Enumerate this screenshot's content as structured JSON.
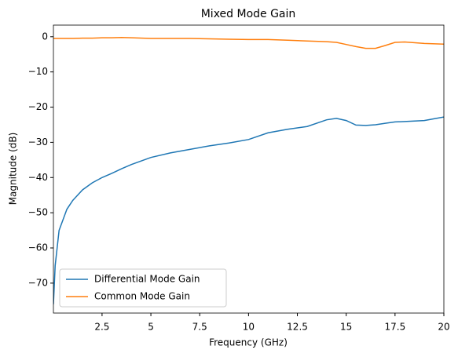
{
  "chart_data": {
    "type": "line",
    "title": "Mixed Mode Gain",
    "x_label": "Frequency (GHz)",
    "y_label": "Magnitude (dB)",
    "x": [
      0.01,
      0.1,
      0.2,
      0.3,
      0.5,
      0.7,
      1,
      1.5,
      2,
      2.5,
      3,
      3.5,
      4,
      5,
      6,
      7,
      8,
      9,
      10,
      11,
      12,
      13,
      14,
      14.5,
      15,
      15.5,
      16,
      16.5,
      17,
      17.5,
      18,
      19,
      20
    ],
    "series": [
      {
        "name": "Differential Mode Gain",
        "color": "#1f77b4",
        "values": [
          -76,
          -65,
          -60,
          -55,
          -52,
          -49,
          -46.5,
          -43.5,
          -41.5,
          -40,
          -38.8,
          -37.5,
          -36.3,
          -34.3,
          -33,
          -32,
          -31,
          -30.2,
          -29.2,
          -27.3,
          -26.3,
          -25.5,
          -23.6,
          -23.2,
          -23.8,
          -25.1,
          -25.2,
          -25,
          -24.6,
          -24.2,
          -24.1,
          -23.8,
          -22.8
        ]
      },
      {
        "name": "Common Mode Gain",
        "color": "#ff7f0e",
        "values": [
          -0.5,
          -0.5,
          -0.5,
          -0.5,
          -0.5,
          -0.5,
          -0.5,
          -0.4,
          -0.4,
          -0.3,
          -0.3,
          -0.2,
          -0.3,
          -0.5,
          -0.5,
          -0.5,
          -0.6,
          -0.7,
          -0.8,
          -0.8,
          -1,
          -1.2,
          -1.4,
          -1.6,
          -2.2,
          -2.8,
          -3.3,
          -3.3,
          -2.5,
          -1.6,
          -1.5,
          -1.9,
          -2.1
        ]
      }
    ],
    "xlim": [
      0.01,
      20
    ],
    "ylim": [
      -78.5,
      3.3
    ],
    "xticks": [
      2.5,
      5,
      7.5,
      10,
      12.5,
      15,
      17.5,
      20
    ],
    "yticks": [
      {
        "value": -70,
        "label": "−70"
      },
      {
        "value": -60,
        "label": "−60"
      },
      {
        "value": -50,
        "label": "−50"
      },
      {
        "value": -40,
        "label": "−40"
      },
      {
        "value": -30,
        "label": "−30"
      },
      {
        "value": -20,
        "label": "−20"
      },
      {
        "value": -10,
        "label": "−10"
      },
      0
    ],
    "legend": "lower left",
    "grid": false
  }
}
